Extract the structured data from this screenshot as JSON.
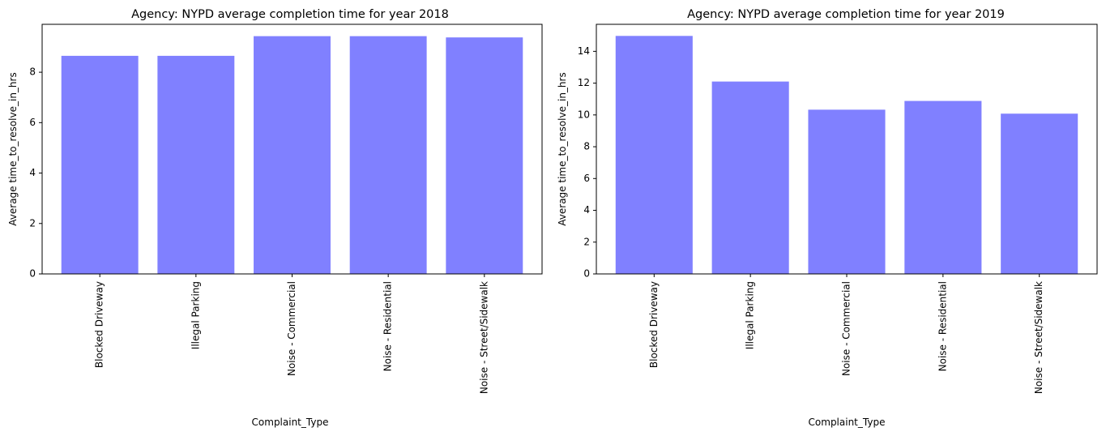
{
  "chart_data": [
    {
      "type": "bar",
      "title": "Agency: NYPD average completion time for year 2018",
      "xlabel": "Complaint_Type",
      "ylabel": "Average time_to_resolve_in_hrs",
      "categories": [
        "Blocked Driveway",
        "Illegal Parking",
        "Noise - Commercial",
        "Noise - Residential",
        "Noise - Street/Sidewalk"
      ],
      "values": [
        8.65,
        8.65,
        9.43,
        9.43,
        9.38
      ],
      "yticks": [
        0,
        2,
        4,
        6,
        8
      ],
      "ylim": [
        0,
        9.9
      ],
      "bar_color": "#8080ff",
      "grid": false
    },
    {
      "type": "bar",
      "title": "Agency: NYPD average completion time for year 2019",
      "xlabel": "Complaint_Type",
      "ylabel": "Average time_to_resolve_in_hrs",
      "categories": [
        "Blocked Driveway",
        "Illegal Parking",
        "Noise - Commercial",
        "Noise - Residential",
        "Noise - Street/Sidewalk"
      ],
      "values": [
        14.97,
        12.1,
        10.33,
        10.88,
        10.08
      ],
      "yticks": [
        0,
        2,
        4,
        6,
        8,
        10,
        12,
        14
      ],
      "ylim": [
        0,
        15.7
      ],
      "bar_color": "#8080ff",
      "grid": false
    }
  ]
}
